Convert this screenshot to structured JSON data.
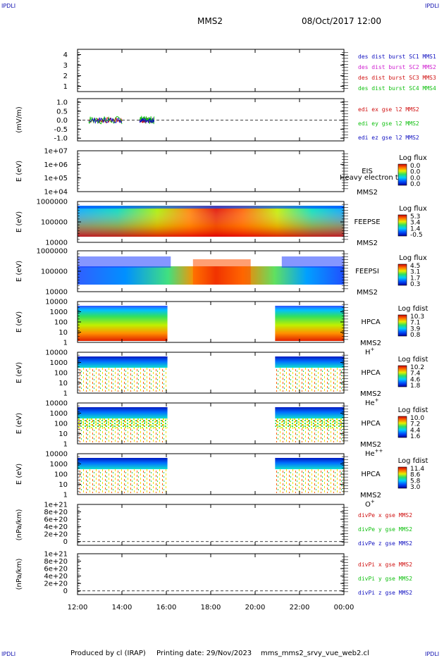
{
  "header": {
    "corner_left_top": "IPDLI",
    "corner_right_top": "IPDLI",
    "corner_left_bottom": "IPDLI",
    "corner_right_bottom": "IPDLI",
    "spacecraft": "MMS2",
    "datetime": "08/Oct/2017 12:00"
  },
  "footer": {
    "produced_by": "Produced by cl (IRAP)",
    "printing_date": "Printing date: 29/Nov/2023",
    "file_name": "mms_mms2_srvy_vue_web2.cl"
  },
  "chart_data": [
    {
      "type": "line",
      "name": "des-dist-burst",
      "ylim": [
        0.5,
        4.5
      ],
      "y_ticks": [
        "4",
        "3",
        "2",
        "1"
      ],
      "y_tick_values": [
        4,
        3,
        2,
        1
      ],
      "ylabel": "",
      "legend": [
        {
          "text": "des dist burst SC1 MMS1",
          "color": "#1010c0"
        },
        {
          "text": "des dist burst SC2 MMS2",
          "color": "#d020d0"
        },
        {
          "text": "des dist burst SC3 MMS3",
          "color": "#d01010"
        },
        {
          "text": "des dist burst SC4 MMS4",
          "color": "#10c010"
        }
      ]
    },
    {
      "type": "line",
      "name": "edi-e-gse",
      "ylim": [
        -1.15,
        1.2
      ],
      "y_ticks": [
        "1.0",
        "0.5",
        "0.0",
        "-0.5",
        "-1.0"
      ],
      "y_tick_values": [
        1.0,
        0.5,
        0.0,
        -0.5,
        -1.0
      ],
      "ylabel": "(mV/m)",
      "zero_line": true,
      "legend": [
        {
          "text": "edi ex gse l2 MMS2",
          "color": "#d01010"
        },
        {
          "text": "edi ey gse l2 MMS2",
          "color": "#10c010"
        },
        {
          "text": "edi ez gse l2 MMS2",
          "color": "#1010c0"
        }
      ],
      "segments": [
        [
          0.5,
          2.0
        ],
        [
          2.8,
          3.45
        ]
      ]
    },
    {
      "type": "heatmap",
      "name": "eis",
      "ylabel": "E (eV)",
      "y_ticks": [
        "1e+07",
        "1e+06",
        "1e+05",
        "1e+04"
      ],
      "label_lines": [
        "EIS",
        "MMS2"
      ],
      "overlay_text": "Heavy electron tof",
      "colorbar_title": "Log flux",
      "colorbar_ticks": [
        "0.0",
        "0.0",
        "0.0",
        "0.0"
      ],
      "coverage": []
    },
    {
      "type": "heatmap",
      "name": "feepse",
      "ylabel": "E (eV)",
      "y_ticks": [
        "1000000",
        "100000",
        "10000"
      ],
      "label_lines": [
        "FEEPSE",
        "MMS2"
      ],
      "colorbar_title": "Log flux",
      "colorbar_ticks": [
        "5.3",
        "3.4",
        "1.4",
        "-0.5"
      ],
      "coverage": [
        [
          0,
          12
        ]
      ]
    },
    {
      "type": "heatmap",
      "name": "feepsi",
      "ylabel": "E (eV)",
      "y_ticks": [
        "1000000",
        "100000",
        "10000"
      ],
      "label_lines": [
        "FEEPSI",
        "MMS2"
      ],
      "colorbar_title": "Log flux",
      "colorbar_ticks": [
        "4.5",
        "3.1",
        "1.7",
        "0.3"
      ],
      "coverage": [
        [
          0,
          12
        ]
      ]
    },
    {
      "type": "heatmap",
      "name": "hpca-h",
      "ylabel": "E (eV)",
      "y_ticks": [
        "10000",
        "1000",
        "100",
        "10",
        "1"
      ],
      "label_lines": [
        "HPCA",
        "MMS2"
      ],
      "species": "H",
      "species_sup": "+",
      "colorbar_title": "Log fdist",
      "colorbar_ticks": [
        "10.3",
        "7.1",
        "3.9",
        "0.8"
      ],
      "coverage": [
        [
          0,
          4.05
        ],
        [
          8.9,
          12
        ]
      ]
    },
    {
      "type": "heatmap",
      "name": "hpca-he",
      "ylabel": "E (eV)",
      "y_ticks": [
        "10000",
        "1000",
        "100",
        "10",
        "1"
      ],
      "label_lines": [
        "HPCA",
        "MMS2"
      ],
      "species": "He",
      "species_sup": "+",
      "colorbar_title": "Log fdist",
      "colorbar_ticks": [
        "10.2",
        "7.4",
        "4.6",
        "1.8"
      ],
      "coverage": [
        [
          0,
          4.05
        ],
        [
          8.9,
          12
        ]
      ]
    },
    {
      "type": "heatmap",
      "name": "hpca-he2",
      "ylabel": "E (eV)",
      "y_ticks": [
        "10000",
        "1000",
        "100",
        "10",
        "1"
      ],
      "label_lines": [
        "HPCA",
        "MMS2"
      ],
      "species": "He",
      "species_sup": "++",
      "colorbar_title": "Log fdist",
      "colorbar_ticks": [
        "10.0",
        "7.2",
        "4.4",
        "1.6"
      ],
      "coverage": [
        [
          0,
          4.05
        ],
        [
          8.9,
          12
        ]
      ]
    },
    {
      "type": "heatmap",
      "name": "hpca-o",
      "ylabel": "E (eV)",
      "y_ticks": [
        "10000",
        "1000",
        "100",
        "10",
        "1"
      ],
      "label_lines": [
        "HPCA",
        "MMS2"
      ],
      "species": "O",
      "species_sup": "+",
      "colorbar_title": "Log fdist",
      "colorbar_ticks": [
        "11.4",
        "8.6",
        "5.8",
        "3.0"
      ],
      "coverage": [
        [
          0,
          4.05
        ],
        [
          8.9,
          12
        ]
      ]
    },
    {
      "type": "line",
      "name": "divpe",
      "ylim": [
        -0.1,
        1.0
      ],
      "y_ticks": [
        "1e+21",
        "8e+20",
        "6e+20",
        "4e+20",
        "2e+20",
        "0"
      ],
      "y_tick_values": [
        1.0,
        0.8,
        0.6,
        0.4,
        0.2,
        0.0
      ],
      "ylabel": "(nPa/km)",
      "zero_line": true,
      "legend": [
        {
          "text": "divPe x gse MMS2",
          "color": "#d01010"
        },
        {
          "text": "divPe y gse MMS2",
          "color": "#10c010"
        },
        {
          "text": "divPe z gse MMS2",
          "color": "#1010c0"
        }
      ]
    },
    {
      "type": "line",
      "name": "divpi",
      "ylim": [
        -0.1,
        1.0
      ],
      "y_ticks": [
        "1e+21",
        "8e+20",
        "6e+20",
        "4e+20",
        "2e+20",
        "0"
      ],
      "y_tick_values": [
        1.0,
        0.8,
        0.6,
        0.4,
        0.2,
        0.0
      ],
      "ylabel": "(nPa/km)",
      "zero_line": true,
      "legend": [
        {
          "text": "divPi x gse MMS2",
          "color": "#d01010"
        },
        {
          "text": "divPi y gse MMS2",
          "color": "#10c010"
        },
        {
          "text": "divPi z gse MMS2",
          "color": "#1010c0"
        }
      ]
    }
  ],
  "x_axis": {
    "tick_labels": [
      "12:00",
      "14:00",
      "16:00",
      "18:00",
      "20:00",
      "22:00",
      "00:00"
    ],
    "tick_hours": [
      0,
      2,
      4,
      6,
      8,
      10,
      12
    ],
    "range_hours": [
      0,
      12
    ]
  }
}
